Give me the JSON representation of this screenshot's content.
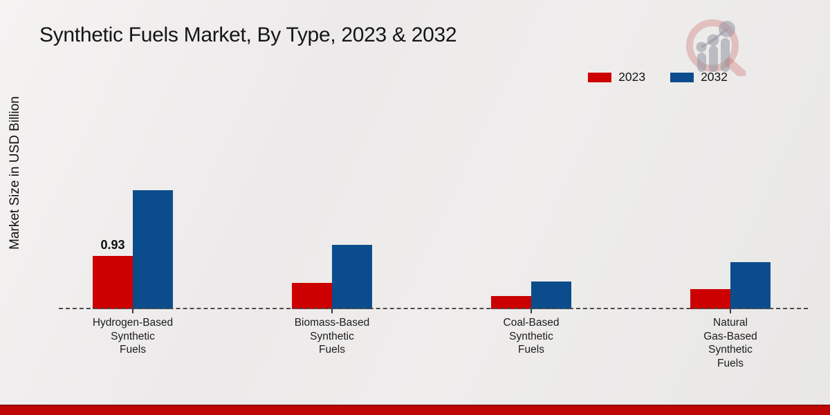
{
  "title": "Synthetic Fuels Market, By Type, 2023 & 2032",
  "ylabel": "Market Size in USD Billion",
  "brand": {
    "logo_icon": "magnifier-bar-chart-logo"
  },
  "colors": {
    "series_2023": "#cc0000",
    "series_2032": "#0b4d8c",
    "footer_band": "#c00505",
    "baseline": "#4b4b4b"
  },
  "chart_data": {
    "type": "bar",
    "title": "Synthetic Fuels Market, By Type, 2023 & 2032",
    "xlabel": "",
    "ylabel": "Market Size in USD Billion",
    "legend_position": "top-right",
    "grid": false,
    "baseline_style": "dashed",
    "ylim": [
      0,
      2.3
    ],
    "categories": [
      "Hydrogen-Based Synthetic Fuels",
      "Biomass-Based Synthetic Fuels",
      "Coal-Based Synthetic Fuels",
      "Natural Gas-Based Synthetic Fuels"
    ],
    "category_label_lines": [
      [
        "Hydrogen-Based",
        "Synthetic",
        "Fuels"
      ],
      [
        "Biomass-Based",
        "Synthetic",
        "Fuels"
      ],
      [
        "Coal-Based",
        "Synthetic",
        "Fuels"
      ],
      [
        "Natural",
        "Gas-Based",
        "Synthetic",
        "Fuels"
      ]
    ],
    "series": [
      {
        "name": "2023",
        "color": "#cc0000",
        "values": [
          0.93,
          0.46,
          0.23,
          0.35
        ]
      },
      {
        "name": "2032",
        "color": "#0b4d8c",
        "values": [
          2.07,
          1.12,
          0.48,
          0.82
        ]
      }
    ],
    "data_labels": [
      {
        "series_index": 0,
        "category_index": 0,
        "text": "0.93"
      }
    ]
  }
}
